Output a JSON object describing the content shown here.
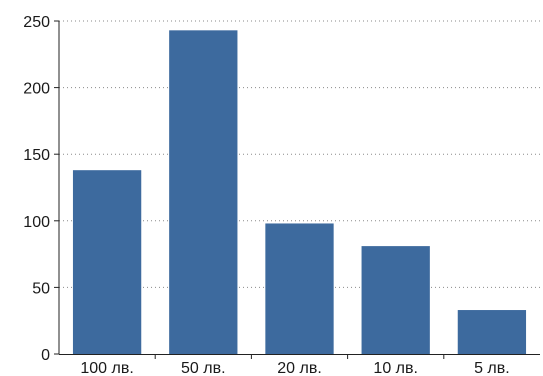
{
  "chart_data": {
    "type": "bar",
    "title": "",
    "xlabel": "",
    "ylabel": "",
    "categories": [
      "100 лв.",
      "50 лв.",
      "20 лв.",
      "10 лв.",
      "5 лв."
    ],
    "values": [
      138,
      243,
      98,
      81,
      33
    ],
    "ylim": [
      0,
      250
    ],
    "yticks": [
      0,
      50,
      100,
      150,
      200,
      250
    ],
    "grid": true,
    "bar_color": "#3d6a9e"
  }
}
